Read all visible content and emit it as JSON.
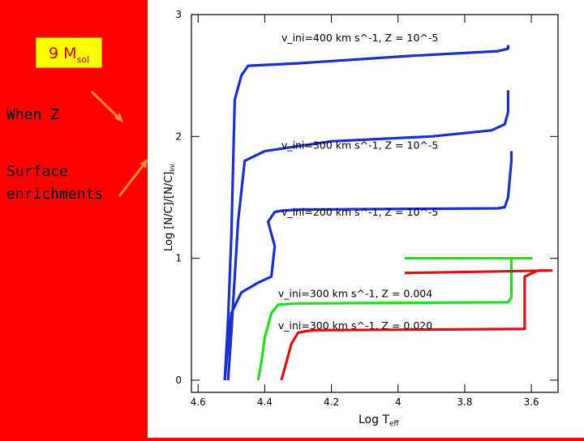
{
  "slide": {
    "badge_main": "9 M",
    "badge_sub": "sol",
    "line1": "When Z",
    "line2a": "Surface",
    "line2b": "enrichments"
  },
  "colors": {
    "background": "#ff0000",
    "badge": "#ffff00",
    "arrow": "#ff8c32",
    "blue": "#1a2fcc",
    "green": "#22dd22",
    "red": "#dd1111"
  },
  "chart_data": {
    "type": "line",
    "xlabel": "Log T",
    "xlabel_sub": "eff",
    "ylabel": "Log [N/C]/[N/C]",
    "ylabel_sub": "ini",
    "xlim": [
      4.6,
      3.55
    ],
    "ylim": [
      -0.05,
      3.0
    ],
    "x_ticks": [
      "4.6",
      "4.4",
      "4.2",
      "4",
      "3.8",
      "3.6"
    ],
    "y_ticks": [
      "0",
      "1",
      "2",
      "3"
    ],
    "grid": false,
    "annotations": [
      "v_ini=400 km s^-1, Z = 10^-5",
      "v_ini=300 km s^-1, Z = 10^-5",
      "v_ini=200 km s^-1, Z = 10^-5",
      "v_ini=300 km s^-1, Z = 0.004",
      "v_ini=300 km s^-1, Z = 0.020"
    ],
    "series": [
      {
        "color": "#1a2fcc",
        "x": [
          4.52,
          4.51,
          4.5,
          4.49,
          4.47,
          4.45,
          4.3,
          3.97,
          3.7,
          3.67,
          3.67
        ],
        "y": [
          0,
          0.5,
          1.2,
          2.3,
          2.5,
          2.58,
          2.6,
          2.66,
          2.7,
          2.72,
          2.75
        ]
      },
      {
        "color": "#1a2fcc",
        "x": [
          4.51,
          4.5,
          4.48,
          4.46,
          4.4,
          4.3,
          4.2,
          3.9,
          3.72,
          3.68,
          3.67,
          3.67
        ],
        "y": [
          0,
          0.4,
          1.3,
          1.8,
          1.88,
          1.92,
          1.96,
          2.0,
          2.05,
          2.1,
          2.2,
          2.38
        ]
      },
      {
        "color": "#1a2fcc",
        "x": [
          4.52,
          4.51,
          4.5,
          4.47,
          4.42,
          4.38,
          4.37,
          4.39,
          4.37,
          4.35,
          4.3,
          3.7,
          3.68,
          3.67,
          3.66,
          3.66
        ],
        "y": [
          0,
          0.3,
          0.55,
          0.72,
          0.8,
          0.85,
          1.1,
          1.3,
          1.38,
          1.39,
          1.4,
          1.41,
          1.42,
          1.5,
          1.8,
          1.88
        ]
      },
      {
        "color": "#22dd22",
        "x": [
          4.42,
          4.41,
          4.4,
          4.38,
          4.36,
          4.3,
          3.67,
          3.66,
          3.66,
          3.6,
          3.98
        ],
        "y": [
          0,
          0.15,
          0.35,
          0.55,
          0.62,
          0.63,
          0.64,
          0.68,
          1.0,
          1.0,
          1.0
        ]
      },
      {
        "color": "#dd1111",
        "x": [
          4.35,
          4.34,
          4.32,
          4.3,
          4.28,
          4.25,
          3.62,
          3.62,
          3.58,
          3.54,
          3.98
        ],
        "y": [
          0,
          0.1,
          0.3,
          0.39,
          0.4,
          0.41,
          0.42,
          0.85,
          0.9,
          0.9,
          0.88
        ]
      }
    ]
  }
}
